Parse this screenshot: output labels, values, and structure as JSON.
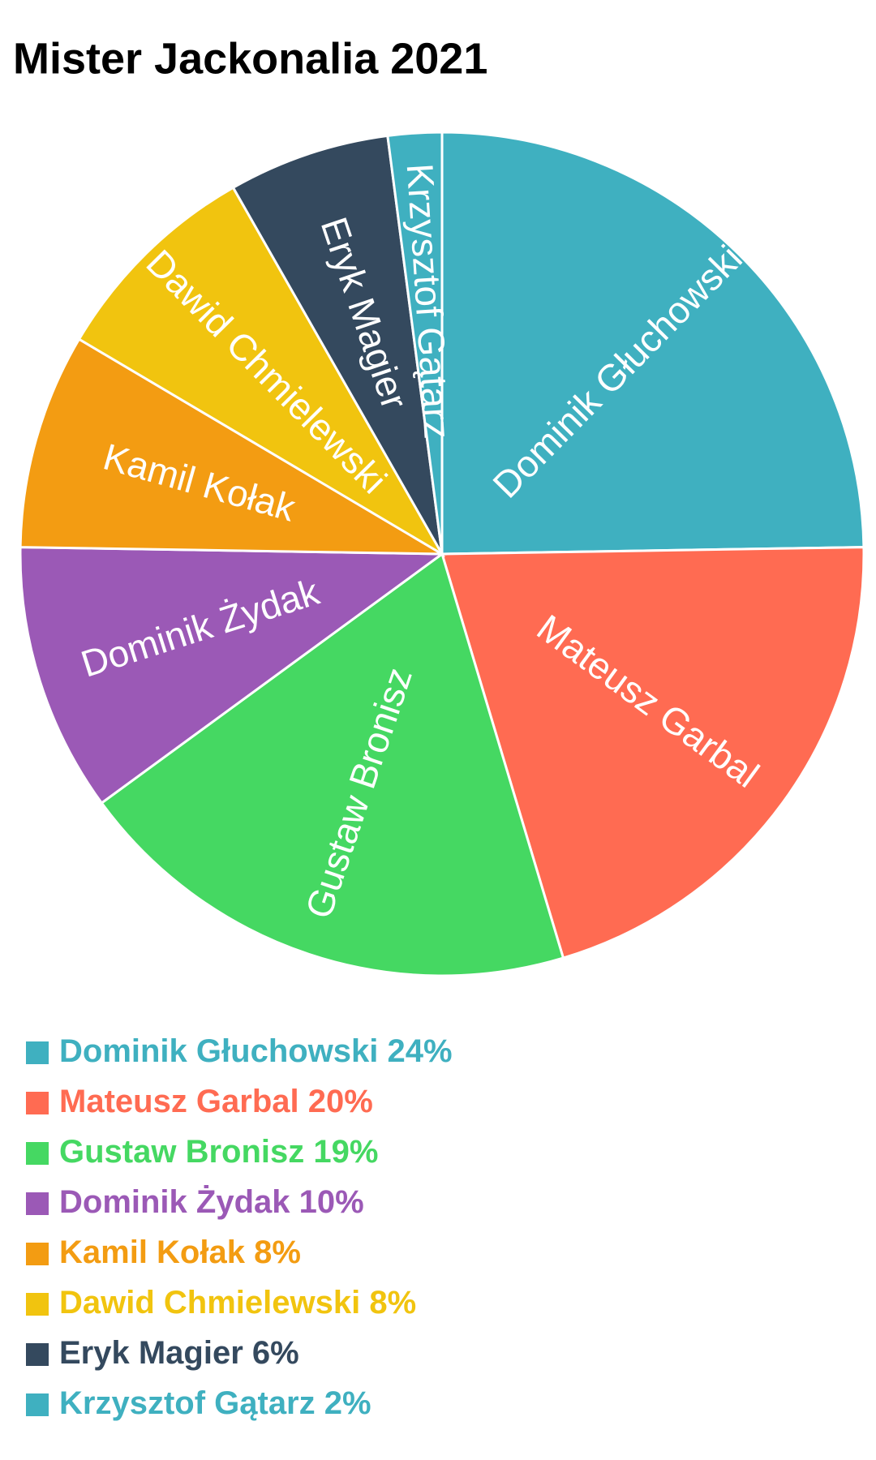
{
  "chart_data": {
    "type": "pie",
    "title": "Mister Jackonalia 2021",
    "categories": [
      "Dominik Głuchowski",
      "Mateusz Garbal",
      "Gustaw Bronisz",
      "Dominik Żydak",
      "Kamil Kołak",
      "Dawid Chmielewski",
      "Eryk Magier",
      "Krzysztof Gątarz"
    ],
    "values": [
      24,
      20,
      19,
      10,
      8,
      8,
      6,
      2
    ],
    "value_labels": [
      "24%",
      "20%",
      "19%",
      "10%",
      "8%",
      "8%",
      "6%",
      "2%"
    ],
    "colors": [
      "#3fb0c0",
      "#ff6b52",
      "#45d862",
      "#9b59b6",
      "#f39c12",
      "#f1c40f",
      "#34495e",
      "#3fb0c0"
    ]
  }
}
